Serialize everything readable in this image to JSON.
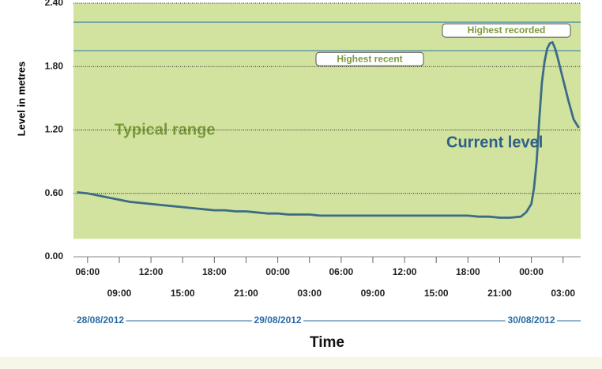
{
  "chart_data": {
    "type": "line",
    "y_label": "Level in metres",
    "x_label": "Time",
    "ylim": [
      0,
      2.4
    ],
    "yticks": [
      {
        "value": 0,
        "label": "0.00"
      },
      {
        "value": 0.6,
        "label": "0.60"
      },
      {
        "value": 1.2,
        "label": "1.20"
      },
      {
        "value": 1.8,
        "label": "1.80"
      },
      {
        "value": 2.4,
        "label": "2.40"
      }
    ],
    "grid": true,
    "xlim": [
      "2012-08-28T04:40",
      "2012-08-30T04:40"
    ],
    "xticks": [
      {
        "value": "2012-08-28T06:00",
        "label": "06:00"
      },
      {
        "value": "2012-08-28T09:00",
        "label": "09:00"
      },
      {
        "value": "2012-08-28T12:00",
        "label": "12:00"
      },
      {
        "value": "2012-08-28T15:00",
        "label": "15:00"
      },
      {
        "value": "2012-08-28T18:00",
        "label": "18:00"
      },
      {
        "value": "2012-08-28T21:00",
        "label": "21:00"
      },
      {
        "value": "2012-08-29T00:00",
        "label": "00:00"
      },
      {
        "value": "2012-08-29T03:00",
        "label": "03:00"
      },
      {
        "value": "2012-08-29T06:00",
        "label": "06:00"
      },
      {
        "value": "2012-08-29T09:00",
        "label": "09:00"
      },
      {
        "value": "2012-08-29T12:00",
        "label": "12:00"
      },
      {
        "value": "2012-08-29T15:00",
        "label": "15:00"
      },
      {
        "value": "2012-08-29T18:00",
        "label": "18:00"
      },
      {
        "value": "2012-08-29T21:00",
        "label": "21:00"
      },
      {
        "value": "2012-08-30T00:00",
        "label": "00:00"
      },
      {
        "value": "2012-08-30T03:00",
        "label": "03:00"
      }
    ],
    "date_ticks": [
      {
        "value": "2012-08-28T00:00",
        "label": "28/08/2012"
      },
      {
        "value": "2012-08-29T00:00",
        "label": "29/08/2012"
      },
      {
        "value": "2012-08-30T00:00",
        "label": "30/08/2012"
      }
    ],
    "typical_range": {
      "label": "Typical range",
      "low": 0.17,
      "high": 2.4,
      "color": "#d2e3a0"
    },
    "highest_recorded": {
      "label": "Highest recorded",
      "value": 2.22
    },
    "highest_recent": {
      "label": "Highest recent",
      "value": 1.95
    },
    "series": [
      {
        "name": "Current level",
        "color": "#3d6b86",
        "x": [
          "2012-08-28T05:00",
          "2012-08-28T06:00",
          "2012-08-28T07:00",
          "2012-08-28T08:00",
          "2012-08-28T09:00",
          "2012-08-28T10:00",
          "2012-08-28T11:00",
          "2012-08-28T12:00",
          "2012-08-28T13:00",
          "2012-08-28T14:00",
          "2012-08-28T15:00",
          "2012-08-28T16:00",
          "2012-08-28T17:00",
          "2012-08-28T18:00",
          "2012-08-28T19:00",
          "2012-08-28T20:00",
          "2012-08-28T21:00",
          "2012-08-28T22:00",
          "2012-08-28T23:00",
          "2012-08-29T00:00",
          "2012-08-29T01:00",
          "2012-08-29T02:00",
          "2012-08-29T03:00",
          "2012-08-29T04:00",
          "2012-08-29T06:00",
          "2012-08-29T09:00",
          "2012-08-29T12:00",
          "2012-08-29T15:00",
          "2012-08-29T18:00",
          "2012-08-29T19:00",
          "2012-08-29T20:00",
          "2012-08-29T21:00",
          "2012-08-29T22:00",
          "2012-08-29T23:00",
          "2012-08-29T23:30",
          "2012-08-30T00:00",
          "2012-08-30T00:15",
          "2012-08-30T00:30",
          "2012-08-30T00:45",
          "2012-08-30T01:00",
          "2012-08-30T01:15",
          "2012-08-30T01:30",
          "2012-08-30T01:45",
          "2012-08-30T02:00",
          "2012-08-30T02:15",
          "2012-08-30T02:30",
          "2012-08-30T02:45",
          "2012-08-30T03:00",
          "2012-08-30T03:30",
          "2012-08-30T04:00",
          "2012-08-30T04:30"
        ],
        "values": [
          0.61,
          0.6,
          0.58,
          0.56,
          0.54,
          0.52,
          0.51,
          0.5,
          0.49,
          0.48,
          0.47,
          0.46,
          0.45,
          0.44,
          0.44,
          0.43,
          0.43,
          0.42,
          0.41,
          0.41,
          0.4,
          0.4,
          0.4,
          0.39,
          0.39,
          0.39,
          0.39,
          0.39,
          0.39,
          0.38,
          0.38,
          0.37,
          0.37,
          0.38,
          0.42,
          0.5,
          0.65,
          0.9,
          1.3,
          1.65,
          1.85,
          1.97,
          2.02,
          2.03,
          1.97,
          1.88,
          1.78,
          1.68,
          1.48,
          1.3,
          1.22
        ]
      }
    ]
  }
}
